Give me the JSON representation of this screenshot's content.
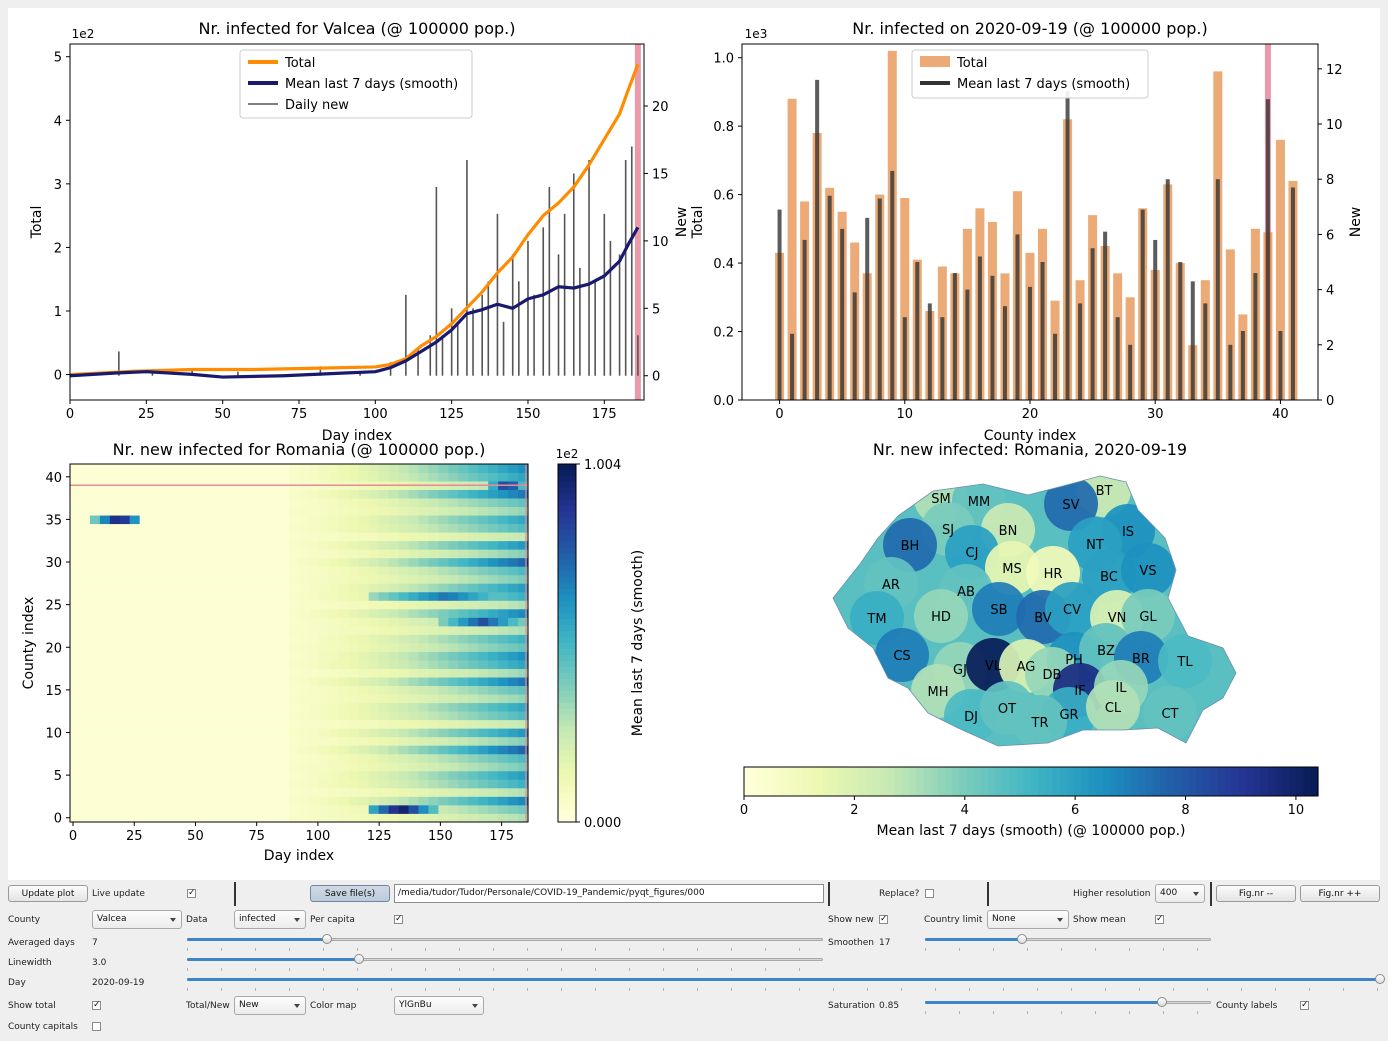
{
  "charts": {
    "c1": {
      "title": "Nr. infected for Valcea (@ 100000 pop.)",
      "xlabel": "Day index",
      "ylabel_left": "Total",
      "ylabel_right": "New",
      "offset_label": "1e2",
      "legend": [
        "Total",
        "Mean last 7 days (smooth)",
        "Daily new"
      ]
    },
    "c2": {
      "title": "Nr. infected on 2020-09-19 (@ 100000 pop.)",
      "xlabel": "County index",
      "ylabel_left": "Total",
      "ylabel_right": "New",
      "offset_label": "1e3",
      "legend": [
        "Total",
        "Mean last 7 days (smooth)"
      ]
    },
    "c3": {
      "title": "Nr. new infected for Romania (@ 100000 pop.)",
      "xlabel": "Day index",
      "ylabel": "County index",
      "colorbar_label": "Mean last 7 days  (smooth)",
      "colorbar_offset": "1e2",
      "colorbar_max": "1.004",
      "colorbar_min": "0.000"
    },
    "c4": {
      "title": "Nr. new infected: Romania, 2020-09-19",
      "colorbar_label": "Mean last 7 days (smooth)  (@ 100000 pop.)"
    }
  },
  "chart_data": [
    {
      "type": "line",
      "title": "Nr. infected for Valcea (@ 100000 pop.)",
      "xlabel": "Day index",
      "ylabel": "Total",
      "y2label": "New",
      "xlim": [
        0,
        188
      ],
      "ylim": [
        -0.4,
        5.2
      ],
      "y2lim": [
        -1.8,
        24.6
      ],
      "xticks": [
        0,
        25,
        50,
        75,
        100,
        125,
        150,
        175
      ],
      "yticks": [
        0,
        1,
        2,
        3,
        4,
        5
      ],
      "y2ticks": [
        0,
        5,
        10,
        15,
        20
      ],
      "highlight_x": 186,
      "series": [
        {
          "name": "Total",
          "axis": "left",
          "color": "#ff8c00",
          "points": [
            [
              0,
              0
            ],
            [
              20,
              0.05
            ],
            [
              40,
              0.08
            ],
            [
              60,
              0.08
            ],
            [
              80,
              0.1
            ],
            [
              100,
              0.12
            ],
            [
              105,
              0.16
            ],
            [
              110,
              0.25
            ],
            [
              115,
              0.45
            ],
            [
              120,
              0.6
            ],
            [
              125,
              0.8
            ],
            [
              130,
              1.05
            ],
            [
              135,
              1.3
            ],
            [
              140,
              1.6
            ],
            [
              145,
              1.85
            ],
            [
              150,
              2.2
            ],
            [
              155,
              2.5
            ],
            [
              160,
              2.7
            ],
            [
              165,
              2.95
            ],
            [
              170,
              3.3
            ],
            [
              175,
              3.7
            ],
            [
              180,
              4.1
            ],
            [
              183,
              4.5
            ],
            [
              186,
              4.88
            ]
          ]
        },
        {
          "name": "Mean last 7 days (smooth)",
          "axis": "right",
          "color": "#191970",
          "points": [
            [
              0,
              0
            ],
            [
              15,
              0.2
            ],
            [
              25,
              0.3
            ],
            [
              40,
              0.1
            ],
            [
              50,
              -0.1
            ],
            [
              70,
              0
            ],
            [
              90,
              0.2
            ],
            [
              100,
              0.3
            ],
            [
              105,
              0.6
            ],
            [
              110,
              1.1
            ],
            [
              115,
              1.8
            ],
            [
              120,
              2.5
            ],
            [
              125,
              3.4
            ],
            [
              130,
              4.6
            ],
            [
              135,
              4.9
            ],
            [
              140,
              5.3
            ],
            [
              145,
              5.0
            ],
            [
              150,
              5.7
            ],
            [
              155,
              6.0
            ],
            [
              160,
              6.6
            ],
            [
              165,
              6.5
            ],
            [
              170,
              6.8
            ],
            [
              175,
              7.4
            ],
            [
              180,
              8.5
            ],
            [
              183,
              9.8
            ],
            [
              186,
              11.0
            ]
          ]
        },
        {
          "name": "Daily new",
          "axis": "right",
          "color": "#555555",
          "bars": [
            [
              16,
              1.8
            ],
            [
              27,
              0.5
            ],
            [
              40,
              0.4
            ],
            [
              55,
              0.3
            ],
            [
              82,
              0.7
            ],
            [
              95,
              0.3
            ],
            [
              105,
              1
            ],
            [
              110,
              6
            ],
            [
              114,
              2
            ],
            [
              118,
              3
            ],
            [
              120,
              14
            ],
            [
              122,
              3
            ],
            [
              125,
              5
            ],
            [
              127,
              4
            ],
            [
              130,
              16
            ],
            [
              132,
              5
            ],
            [
              135,
              6
            ],
            [
              137,
              7
            ],
            [
              140,
              12
            ],
            [
              142,
              4
            ],
            [
              145,
              9
            ],
            [
              147,
              7
            ],
            [
              150,
              10
            ],
            [
              152,
              6
            ],
            [
              155,
              11
            ],
            [
              157,
              14
            ],
            [
              160,
              9
            ],
            [
              162,
              12
            ],
            [
              165,
              15
            ],
            [
              167,
              8
            ],
            [
              170,
              16
            ],
            [
              172,
              7
            ],
            [
              175,
              12
            ],
            [
              177,
              10
            ],
            [
              180,
              9
            ],
            [
              182,
              16
            ],
            [
              184,
              17
            ],
            [
              186,
              3
            ]
          ]
        }
      ]
    },
    {
      "type": "bar",
      "title": "Nr. infected on 2020-09-19 (@ 100000 pop.)",
      "xlabel": "County index",
      "ylabel": "Total",
      "y2label": "New",
      "xlim": [
        -3,
        43
      ],
      "ylim": [
        0,
        1.04
      ],
      "y2lim": [
        0,
        12.9
      ],
      "xticks": [
        0,
        10,
        20,
        30,
        40
      ],
      "yticks": [
        0.0,
        0.2,
        0.4,
        0.6,
        0.8,
        1.0
      ],
      "y2ticks": [
        0,
        2,
        4,
        6,
        8,
        10,
        12
      ],
      "highlight_x": 39,
      "categories": [
        0,
        1,
        2,
        3,
        4,
        5,
        6,
        7,
        8,
        9,
        10,
        11,
        12,
        13,
        14,
        15,
        16,
        17,
        18,
        19,
        20,
        21,
        22,
        23,
        24,
        25,
        26,
        27,
        28,
        29,
        30,
        31,
        32,
        33,
        34,
        35,
        36,
        37,
        38,
        39,
        40,
        41
      ],
      "series": [
        {
          "name": "Total",
          "axis": "left",
          "color": "#e07c2c",
          "values": [
            0.43,
            0.88,
            0.58,
            0.78,
            0.62,
            0.55,
            0.46,
            0.37,
            0.6,
            1.02,
            0.59,
            0.41,
            0.26,
            0.39,
            0.37,
            0.5,
            0.56,
            0.52,
            0.37,
            0.61,
            0.43,
            0.5,
            0.29,
            0.82,
            0.35,
            0.54,
            0.45,
            0.37,
            0.3,
            0.56,
            0.38,
            0.63,
            0.4,
            0.16,
            0.35,
            0.96,
            0.44,
            0.25,
            0.5,
            0.49,
            0.76,
            0.64
          ]
        },
        {
          "name": "Mean last 7 days (smooth)",
          "axis": "right",
          "color": "#333333",
          "values": [
            6.9,
            2.4,
            5.8,
            11.6,
            7.4,
            6.2,
            3.9,
            6.6,
            7.3,
            8.3,
            3.0,
            5.0,
            3.5,
            3.0,
            4.6,
            4.0,
            5.2,
            4.5,
            3.4,
            6.0,
            4.1,
            5.0,
            2.4,
            11.2,
            3.5,
            5.5,
            6.1,
            3.0,
            2.0,
            6.9,
            5.8,
            8.0,
            5.0,
            4.3,
            3.5,
            8.0,
            2.0,
            2.5,
            4.6,
            10.9,
            2.5,
            7.7
          ]
        }
      ]
    },
    {
      "type": "heatmap",
      "title": "Nr. new infected for Romania (@ 100000 pop.)",
      "xlabel": "Day index",
      "ylabel": "County index",
      "xlim": [
        0,
        187
      ],
      "ylim": [
        0,
        41
      ],
      "xticks": [
        0,
        25,
        50,
        75,
        100,
        125,
        150,
        175
      ],
      "yticks": [
        0,
        5,
        10,
        15,
        20,
        25,
        30,
        35,
        40
      ],
      "colormap": "YlGnBu",
      "colorbar_label": "Mean last 7 days  (smooth)",
      "colorbar_range": [
        0.0,
        1.004
      ],
      "colorbar_scale": "1e2",
      "highlight_y": 39,
      "notable_cells": [
        {
          "county": 35,
          "days": [
            10,
            30
          ],
          "value": 1.0
        },
        {
          "county": 1,
          "days": [
            120,
            150
          ],
          "value": 1.0
        },
        {
          "county": 39,
          "days": [
            170,
            187
          ],
          "value": 0.9
        },
        {
          "county": 26,
          "days": [
            120,
            187
          ],
          "value": 0.7
        },
        {
          "county": 23,
          "days": [
            150,
            187
          ],
          "value": 0.8
        }
      ]
    },
    {
      "type": "map",
      "title": "Nr. new infected: Romania, 2020-09-19",
      "colormap": "YlGnBu",
      "colorbar_label": "Mean last 7 days (smooth)  (@ 100000 pop.)",
      "colorbar_range": [
        0,
        10.4
      ],
      "colorbar_ticks": [
        0,
        2,
        4,
        6,
        8,
        10
      ],
      "regions": [
        {
          "code": "BT",
          "value": 2.5
        },
        {
          "code": "SM",
          "value": 3
        },
        {
          "code": "MM",
          "value": 4.5
        },
        {
          "code": "SV",
          "value": 7.5
        },
        {
          "code": "SJ",
          "value": 4
        },
        {
          "code": "BN",
          "value": 2.5
        },
        {
          "code": "IS",
          "value": 6.5
        },
        {
          "code": "BH",
          "value": 7.5
        },
        {
          "code": "CJ",
          "value": 6
        },
        {
          "code": "NT",
          "value": 6
        },
        {
          "code": "MS",
          "value": 1.5
        },
        {
          "code": "HR",
          "value": 1
        },
        {
          "code": "BC",
          "value": 6
        },
        {
          "code": "VS",
          "value": 6.5
        },
        {
          "code": "AR",
          "value": 4.5
        },
        {
          "code": "AB",
          "value": 4.5
        },
        {
          "code": "TM",
          "value": 5.5
        },
        {
          "code": "HD",
          "value": 3.5
        },
        {
          "code": "SB",
          "value": 7
        },
        {
          "code": "BV",
          "value": 7.5
        },
        {
          "code": "CV",
          "value": 6
        },
        {
          "code": "VN",
          "value": 2
        },
        {
          "code": "GL",
          "value": 4
        },
        {
          "code": "CS",
          "value": 7
        },
        {
          "code": "GJ",
          "value": 3.5
        },
        {
          "code": "VL",
          "value": 10.4
        },
        {
          "code": "AG",
          "value": 2
        },
        {
          "code": "PH",
          "value": 6.5
        },
        {
          "code": "BZ",
          "value": 4.5
        },
        {
          "code": "BR",
          "value": 7
        },
        {
          "code": "TL",
          "value": 5
        },
        {
          "code": "DB",
          "value": 3.5
        },
        {
          "code": "MH",
          "value": 3
        },
        {
          "code": "IF",
          "value": 9.5
        },
        {
          "code": "IL",
          "value": 3.5
        },
        {
          "code": "DJ",
          "value": 5
        },
        {
          "code": "OT",
          "value": 4.5
        },
        {
          "code": "GR",
          "value": 5.5
        },
        {
          "code": "CL",
          "value": 3
        },
        {
          "code": "TR",
          "value": 4.5
        },
        {
          "code": "CT",
          "value": 4.5
        }
      ]
    }
  ],
  "controls": {
    "update_plot": "Update plot",
    "live_update": "Live update",
    "live_update_checked": true,
    "save_files": "Save file(s)",
    "save_path": "/media/tudor/Tudor/Personale/COVID-19_Pandemic/pyqt_figures/000",
    "replace": "Replace?",
    "replace_checked": false,
    "higher_resolution": "Higher resolution",
    "resolution_value": "400",
    "fig_prev": "Fig.nr --",
    "fig_next": "Fig.nr ++",
    "county_label": "County",
    "county_value": "Valcea",
    "data_label": "Data",
    "data_value": "infected",
    "per_capita": "Per capita",
    "per_capita_checked": true,
    "show_new": "Show new",
    "show_new_checked": true,
    "country_limit": "Country limit",
    "country_limit_value": "None",
    "show_mean": "Show mean",
    "show_mean_checked": true,
    "averaged_days_label": "Averaged days",
    "averaged_days_value": "7",
    "averaged_days_level": 0.22,
    "smoothen_label": "Smoothen",
    "smoothen_value": "17",
    "smoothen_level": 0.34,
    "linewidth_label": "Linewidth",
    "linewidth_value": "3.0",
    "linewidth_level": 0.27,
    "day_label": "Day",
    "day_value": "2020-09-19",
    "day_level": 1.0,
    "show_total": "Show total",
    "show_total_checked": true,
    "total_new_label": "Total/New",
    "total_new_value": "New",
    "color_map_label": "Color map",
    "color_map_value": "YlGnBu",
    "saturation_label": "Saturation",
    "saturation_value": "0.85",
    "saturation_level": 0.83,
    "county_labels": "County labels",
    "county_labels_checked": true,
    "county_capitals": "County capitals",
    "county_capitals_checked": false
  }
}
